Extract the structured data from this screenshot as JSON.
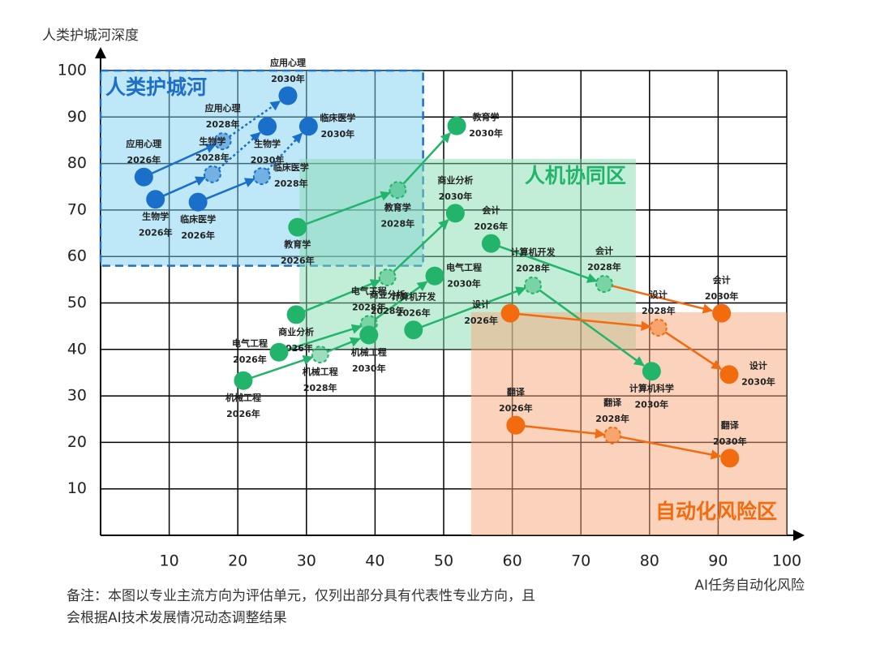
{
  "chart_data": {
    "type": "scatter",
    "xlabel": "AI任务自动化风险",
    "ylabel": "人类护城河深度",
    "xlim": [
      0,
      100
    ],
    "ylim": [
      0,
      100
    ],
    "xticks": [
      10,
      20,
      30,
      40,
      50,
      60,
      70,
      80,
      90,
      100
    ],
    "yticks": [
      10,
      20,
      30,
      40,
      50,
      60,
      70,
      80,
      90,
      100
    ],
    "grid": true,
    "note": [
      "备注：本图以专业主流方向为评估单元，仅列出部分具有代表性专业方向，且",
      "会根据AI技术发展情况动态调整结果"
    ],
    "years": [
      "2026年",
      "2028年",
      "2030年"
    ],
    "regions": [
      {
        "label": "人类护城河",
        "color": "#1f6fc6",
        "fill": "#7dd0f2",
        "x": [
          0,
          47
        ],
        "y": [
          58,
          100
        ],
        "dashed": true,
        "label_corner": "top-left"
      },
      {
        "label": "人机协同区",
        "color": "#22b46a",
        "fill": "#86dcae",
        "x": [
          29,
          78
        ],
        "y": [
          40,
          81
        ],
        "dashed": false,
        "label_corner": "top-right"
      },
      {
        "label": "自动化风险区",
        "color": "#f26b0f",
        "fill": "#f7a77a",
        "x": [
          54,
          100
        ],
        "y": [
          0,
          48
        ],
        "dashed": false,
        "label_corner": "bottom-right"
      }
    ],
    "series": [
      {
        "name": "应用心理",
        "labels": [
          "应用心理",
          "应用心理",
          "应用心理"
        ],
        "colors": [
          "#1a6fc9",
          "#1a6fc9",
          "#1a6fc9"
        ],
        "x": [
          6.3,
          17.8,
          27.3
        ],
        "y": [
          77.1,
          84.8,
          94.6
        ],
        "label_pos": [
          "above",
          "above",
          "above"
        ]
      },
      {
        "name": "生物学",
        "labels": [
          "生物学",
          "生物学",
          "生物学"
        ],
        "colors": [
          "#1a6fc9",
          "#1a6fc9",
          "#1a6fc9"
        ],
        "x": [
          8.0,
          16.3,
          24.3
        ],
        "y": [
          72.3,
          77.7,
          88.0
        ],
        "label_pos": [
          "below",
          "above",
          "below"
        ]
      },
      {
        "name": "临床医学",
        "labels": [
          "临床医学",
          "临床医学",
          "临床医学"
        ],
        "colors": [
          "#1a6fc9",
          "#1a6fc9",
          "#1a6fc9"
        ],
        "x": [
          14.2,
          23.5,
          30.3
        ],
        "y": [
          71.7,
          77.3,
          88.0
        ],
        "label_pos": [
          "below",
          "right",
          "right"
        ]
      },
      {
        "name": "教育学",
        "labels": [
          "教育学",
          "教育学",
          "教育学"
        ],
        "colors": [
          "#22b46a",
          "#22b46a",
          "#22b46a"
        ],
        "x": [
          28.7,
          43.3,
          51.9
        ],
        "y": [
          66.3,
          74.3,
          88.1
        ],
        "label_pos": [
          "below",
          "below",
          "right"
        ]
      },
      {
        "name": "商业分析",
        "labels": [
          "商业分析",
          "商业分析",
          "商业分析"
        ],
        "colors": [
          "#22b46a",
          "#22b46a",
          "#22b46a"
        ],
        "x": [
          28.5,
          41.8,
          51.7
        ],
        "y": [
          47.5,
          55.5,
          69.3
        ],
        "label_pos": [
          "below",
          "below",
          "above"
        ]
      },
      {
        "name": "电气工程",
        "labels": [
          "电气工程",
          "电气工程",
          "电气工程"
        ],
        "colors": [
          "#22b46a",
          "#22b46a",
          "#22b46a"
        ],
        "x": [
          26.0,
          39.1,
          48.7
        ],
        "y": [
          39.4,
          45.5,
          55.8
        ],
        "label_pos": [
          "left",
          "above",
          "right"
        ]
      },
      {
        "name": "机械工程",
        "labels": [
          "机械工程",
          "机械工程",
          "机械工程"
        ],
        "colors": [
          "#22b46a",
          "#22b46a",
          "#22b46a"
        ],
        "x": [
          20.8,
          32.0,
          39.1
        ],
        "y": [
          33.3,
          38.9,
          43.1
        ],
        "label_pos": [
          "below",
          "below",
          "below"
        ]
      },
      {
        "name": "计算机",
        "labels": [
          "计算机开发",
          "计算机开发",
          "计算机科学"
        ],
        "colors": [
          "#22b46a",
          "#22b46a",
          "#22b46a"
        ],
        "x": [
          45.6,
          63.0,
          80.3
        ],
        "y": [
          44.2,
          53.8,
          35.3
        ],
        "label_pos": [
          "above",
          "above",
          "below"
        ]
      },
      {
        "name": "会计",
        "labels": [
          "会计",
          "会计",
          "会计"
        ],
        "colors": [
          "#22b46a",
          "#22b46a",
          "#f26b0f"
        ],
        "x": [
          56.9,
          73.4,
          90.5
        ],
        "y": [
          62.8,
          54.1,
          47.8
        ],
        "label_pos": [
          "above",
          "above",
          "above"
        ]
      },
      {
        "name": "设计",
        "labels": [
          "设计",
          "设计",
          "设计"
        ],
        "colors": [
          "#f26b0f",
          "#f26b0f",
          "#f26b0f"
        ],
        "x": [
          59.7,
          81.3,
          91.6
        ],
        "y": [
          47.8,
          44.7,
          34.6
        ],
        "label_pos": [
          "left",
          "above",
          "right"
        ]
      },
      {
        "name": "翻译",
        "labels": [
          "翻译",
          "翻译",
          "翻译"
        ],
        "colors": [
          "#f26b0f",
          "#f26b0f",
          "#f26b0f"
        ],
        "x": [
          60.5,
          74.6,
          91.7
        ],
        "y": [
          23.7,
          21.5,
          16.6
        ],
        "label_pos": [
          "above",
          "above",
          "above"
        ]
      }
    ]
  }
}
